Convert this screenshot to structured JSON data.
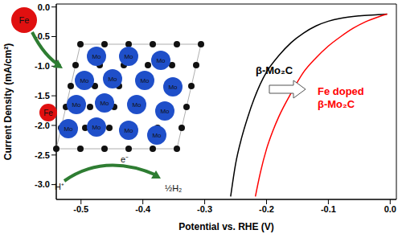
{
  "chart_data": {
    "type": "line",
    "x_label": "Potential vs. RHE (V)",
    "y_label": "Current Density (mA/cm²)",
    "xlim": [
      -0.54,
      0.01
    ],
    "ylim": [
      -3.25,
      0.05
    ],
    "xticks": [
      -0.5,
      -0.4,
      -0.3,
      -0.2,
      -0.1,
      {
        "value": 0,
        "label": "0.0"
      }
    ],
    "yticks": [
      {
        "value": 0,
        "label": "0.0"
      },
      -0.5,
      {
        "value": -1,
        "label": "-1.0"
      },
      -1.5,
      {
        "value": -2,
        "label": "-2.0"
      },
      -2.5,
      {
        "value": -3,
        "label": "-3.0"
      }
    ],
    "series": [
      {
        "name": "β-Mo₂C",
        "color": "#000000",
        "x": [
          -0.005,
          -0.02,
          -0.05,
          -0.08,
          -0.1,
          -0.12,
          -0.14,
          -0.16,
          -0.18,
          -0.2,
          -0.21,
          -0.22,
          -0.23,
          -0.24,
          -0.25,
          -0.258
        ],
        "values": [
          -0.12,
          -0.13,
          -0.15,
          -0.19,
          -0.24,
          -0.32,
          -0.44,
          -0.6,
          -0.82,
          -1.1,
          -1.3,
          -1.55,
          -1.85,
          -2.2,
          -2.65,
          -3.2
        ]
      },
      {
        "name": "Fe doped β-Mo₂C",
        "color": "#ff0000",
        "x": [
          -0.005,
          -0.02,
          -0.04,
          -0.06,
          -0.08,
          -0.1,
          -0.12,
          -0.14,
          -0.16,
          -0.18,
          -0.19,
          -0.2,
          -0.21,
          -0.218
        ],
        "values": [
          -0.12,
          -0.17,
          -0.25,
          -0.36,
          -0.5,
          -0.66,
          -0.86,
          -1.1,
          -1.45,
          -1.85,
          -2.1,
          -2.4,
          -2.8,
          -3.2
        ]
      }
    ],
    "inset": {
      "fe": "Fe",
      "mo": "Mo",
      "proton": "H⁺",
      "electron": "e⁻",
      "hydrogen": "½H₂"
    }
  }
}
